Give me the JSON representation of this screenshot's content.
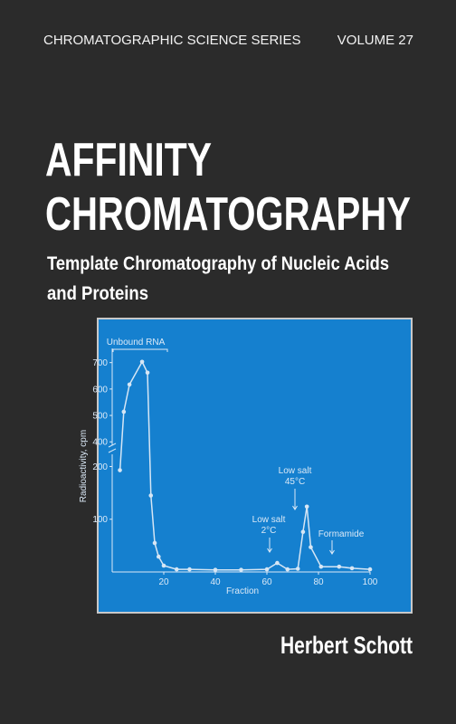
{
  "series": "CHROMATOGRAPHIC SCIENCE SERIES",
  "volume": "VOLUME 27",
  "title": [
    "AFFINITY",
    "CHROMATOGRAPHY"
  ],
  "subtitle": [
    "Template Chromatography of Nucleic Acids",
    "and Proteins"
  ],
  "author": "Herbert Schott",
  "chart_data": {
    "type": "line",
    "x_label": "Fraction",
    "y_label": "Radioactivity, cpm",
    "x": [
      3,
      4.5,
      6.7,
      11.6,
      13.7,
      15,
      16.5,
      18,
      20,
      25,
      30,
      40,
      50,
      60,
      64,
      68,
      72,
      74,
      75.5,
      77,
      81,
      88,
      93,
      100
    ],
    "values": [
      193,
      514,
      617,
      703,
      662,
      145,
      55,
      29,
      12,
      5,
      5,
      4,
      4,
      5,
      17,
      5,
      6,
      76,
      124,
      47,
      10,
      10,
      7,
      5
    ],
    "color": "#d6e6f5",
    "xlim": [
      0,
      100
    ],
    "xticks": [
      20,
      40,
      60,
      80,
      100
    ],
    "ylim": [
      0,
      740
    ],
    "ybreak": [
      230,
      370
    ],
    "yticks": [
      100,
      200,
      400,
      500,
      600,
      700
    ],
    "annotations": [
      "Unbound RNA",
      "Low salt",
      "45°C",
      "Low salt",
      "2°C",
      "Formamide"
    ]
  }
}
